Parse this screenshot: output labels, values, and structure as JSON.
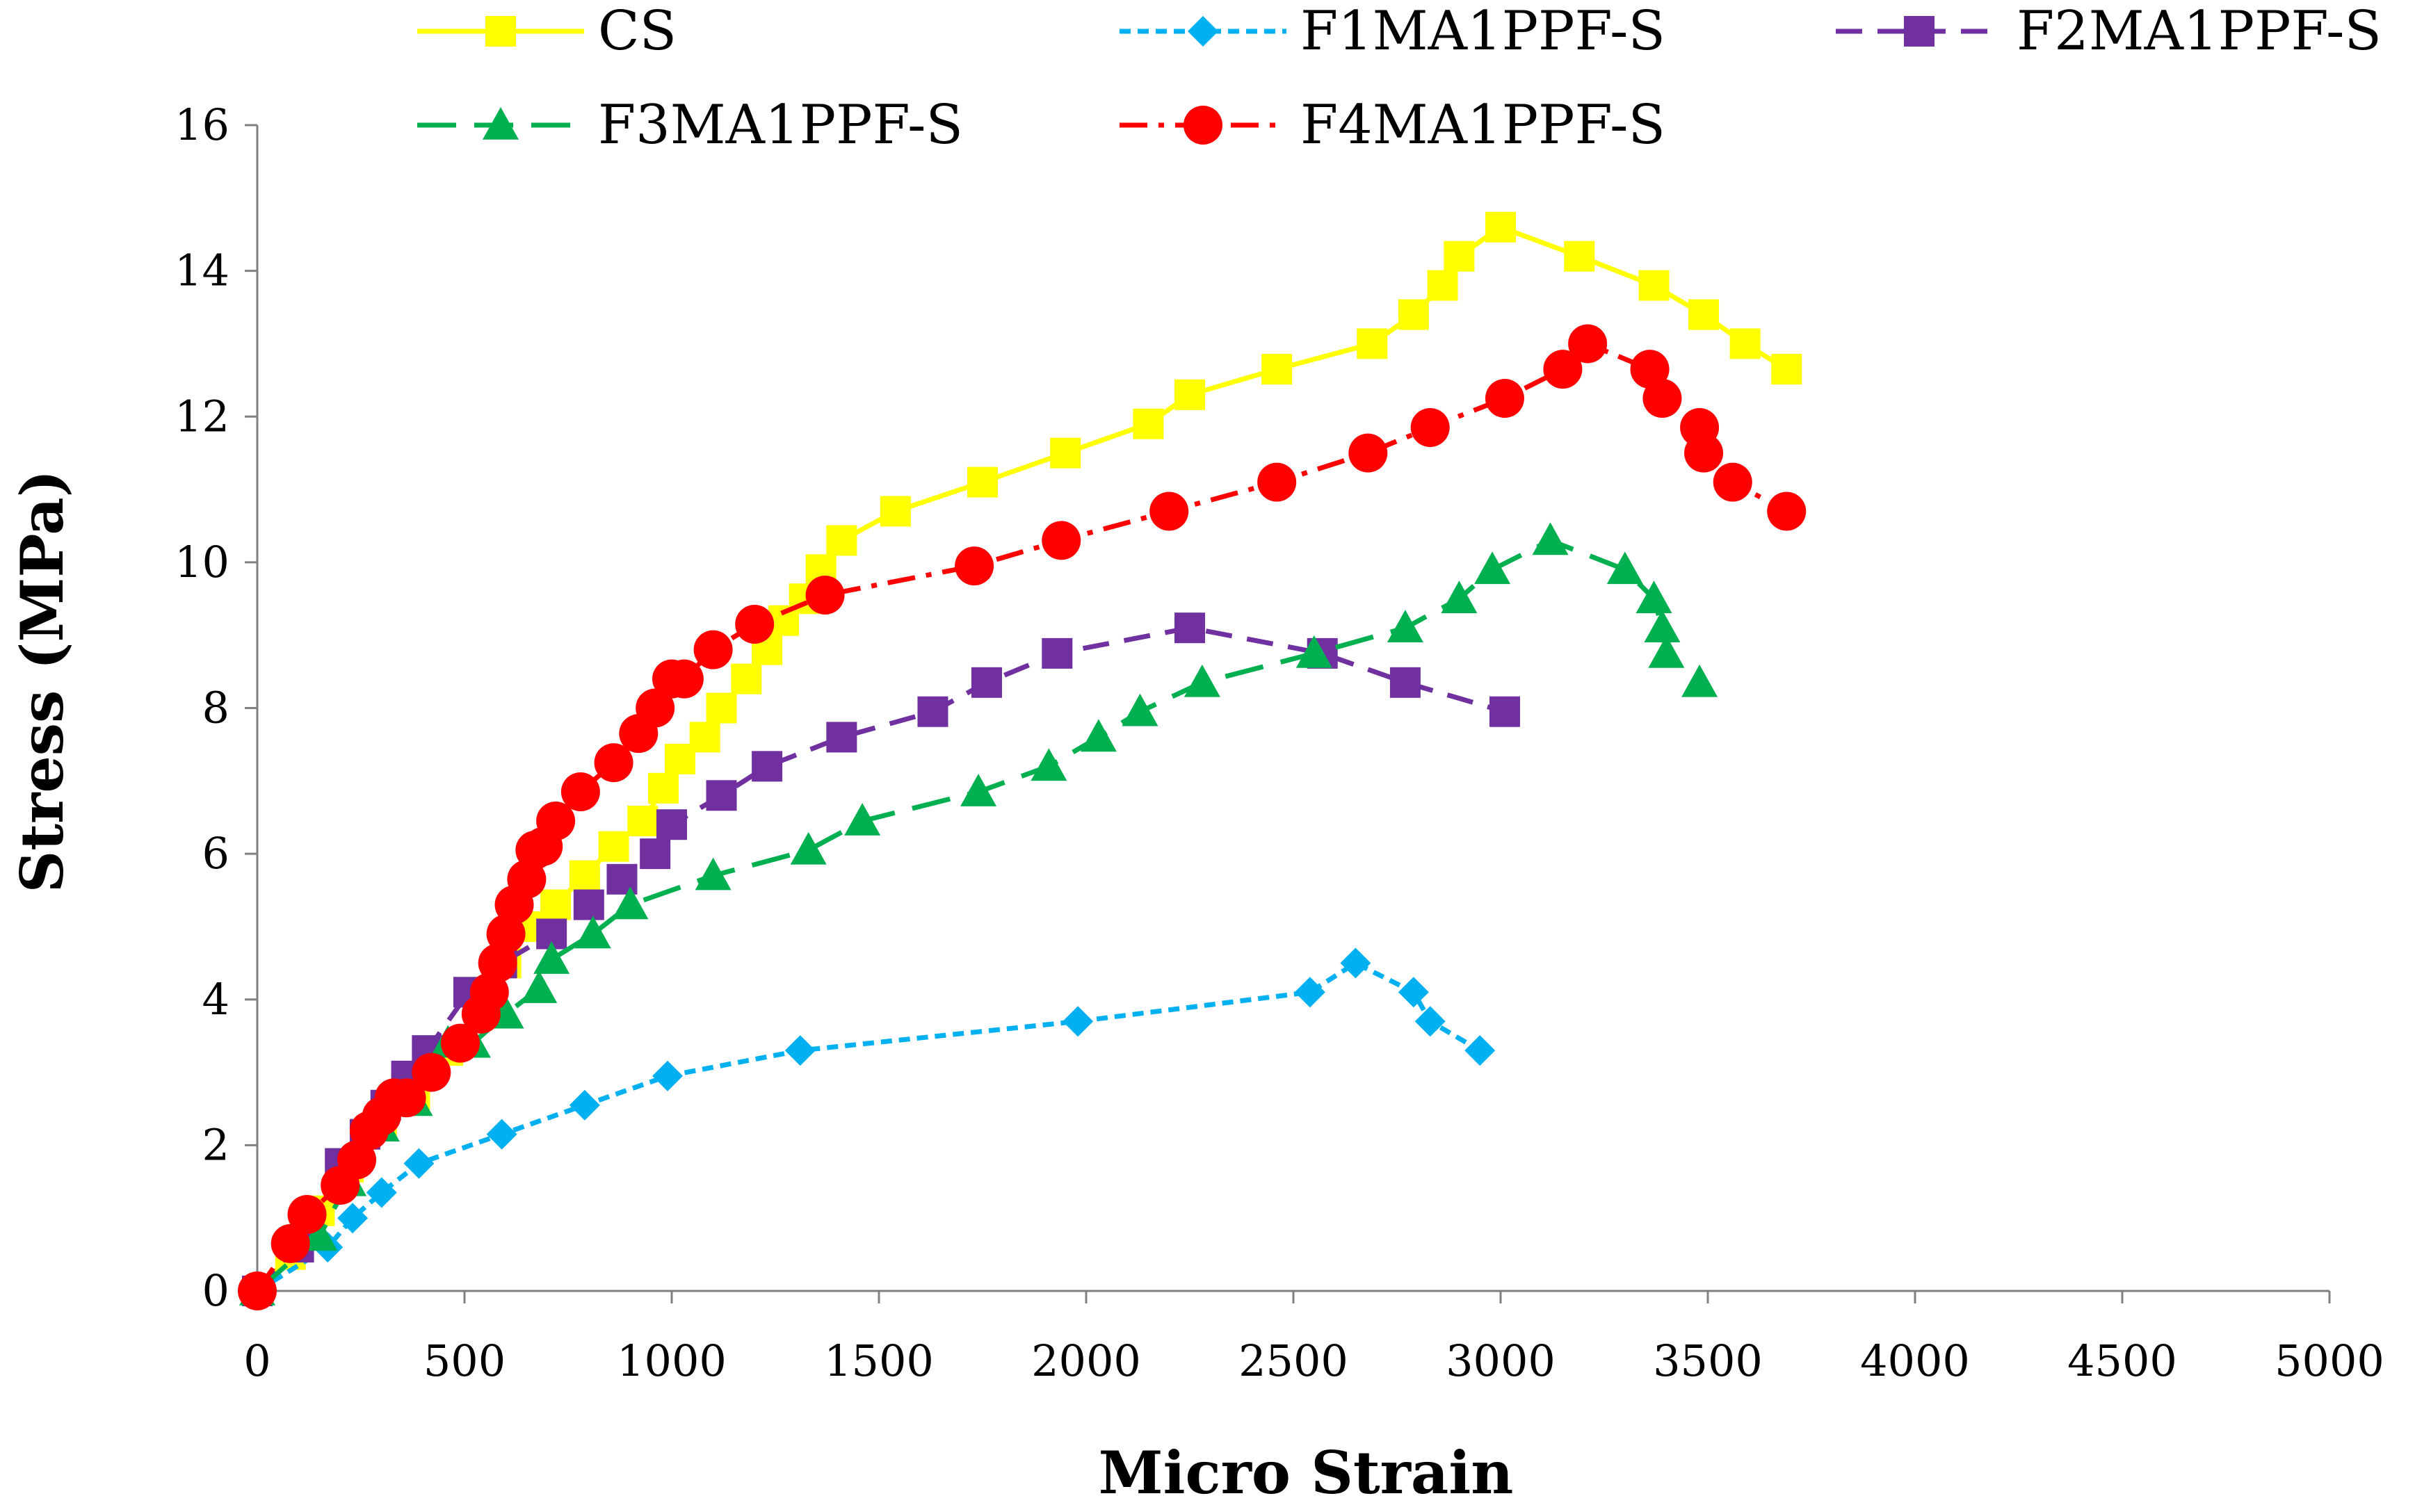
{
  "chart_data": {
    "type": "line",
    "xlabel": "Micro Strain",
    "ylabel": "Stress (MPa)",
    "xlim": [
      0,
      5000
    ],
    "ylim": [
      0,
      16
    ],
    "x_ticks": [
      "0",
      "500",
      "1000",
      "1500",
      "2000",
      "2500",
      "3000",
      "3500",
      "4000",
      "4500",
      "5000"
    ],
    "y_ticks": [
      "0",
      "2",
      "4",
      "6",
      "8",
      "10",
      "12",
      "14",
      "16"
    ],
    "grid": false,
    "legend_position": "top",
    "series": [
      {
        "name": "CS",
        "color": "#FFFF00",
        "marker": "square",
        "dash": "solid",
        "x": [
          0,
          80,
          150,
          220,
          300,
          380,
          460,
          540,
          600,
          660,
          720,
          790,
          860,
          930,
          980,
          1020,
          1080,
          1120,
          1180,
          1230,
          1270,
          1320,
          1360,
          1410,
          1540,
          1750,
          1950,
          2150,
          2250,
          2460,
          2690,
          2790,
          2860,
          2900,
          3000,
          3190,
          3370,
          3490,
          3590,
          3690
        ],
        "y": [
          0,
          0.5,
          1.1,
          1.7,
          2.3,
          2.7,
          3.3,
          3.9,
          4.5,
          5.0,
          5.3,
          5.7,
          6.1,
          6.45,
          6.9,
          7.3,
          7.6,
          8.0,
          8.4,
          8.8,
          9.2,
          9.5,
          9.9,
          10.3,
          10.7,
          11.1,
          11.5,
          11.9,
          12.3,
          12.65,
          13.0,
          13.4,
          13.8,
          14.2,
          14.6,
          14.2,
          13.8,
          13.4,
          13.0,
          12.65
        ]
      },
      {
        "name": "F1MA1PPF-S",
        "color": "#00B0F0",
        "marker": "diamond",
        "dash": "short-dash",
        "x": [
          0,
          170,
          230,
          300,
          390,
          590,
          790,
          990,
          1310,
          1980,
          2540,
          2650,
          2790,
          2830,
          2950
        ],
        "y": [
          0,
          0.6,
          1.0,
          1.35,
          1.75,
          2.15,
          2.55,
          2.95,
          3.3,
          3.7,
          4.1,
          4.5,
          4.1,
          3.7,
          3.3
        ]
      },
      {
        "name": "F2MA1PPF-S",
        "color": "#7030A0",
        "marker": "square",
        "dash": "dash",
        "x": [
          0,
          100,
          200,
          260,
          310,
          360,
          410,
          510,
          590,
          710,
          800,
          880,
          960,
          1000,
          1120,
          1230,
          1410,
          1630,
          1760,
          1930,
          2250,
          2570,
          2770,
          3010
        ],
        "y": [
          0,
          0.6,
          1.75,
          2.15,
          2.55,
          2.95,
          3.3,
          4.1,
          4.5,
          4.9,
          5.3,
          5.65,
          6.0,
          6.4,
          6.8,
          7.2,
          7.6,
          7.95,
          8.35,
          8.75,
          9.1,
          8.75,
          8.35,
          7.95
        ]
      },
      {
        "name": "F3MA1PPF-S",
        "color": "#00B050",
        "marker": "triangle",
        "dash": "long-dash",
        "x": [
          0,
          150,
          220,
          300,
          380,
          460,
          520,
          600,
          680,
          710,
          810,
          900,
          1100,
          1330,
          1460,
          1740,
          1910,
          2030,
          2130,
          2280,
          2550,
          2770,
          2900,
          2980,
          3120,
          3300,
          3370,
          3390,
          3400,
          3480
        ],
        "y": [
          0,
          0.75,
          1.5,
          2.25,
          2.6,
          3.4,
          3.4,
          3.8,
          4.15,
          4.55,
          4.9,
          5.3,
          5.7,
          6.05,
          6.45,
          6.85,
          7.2,
          7.6,
          7.95,
          8.35,
          8.75,
          9.1,
          9.5,
          9.9,
          10.3,
          9.9,
          9.5,
          9.1,
          8.75,
          8.35
        ]
      },
      {
        "name": "F4MA1PPF-S",
        "color": "#FF0000",
        "marker": "circle",
        "dash": "dash-dot",
        "x": [
          0,
          80,
          120,
          200,
          240,
          270,
          300,
          330,
          360,
          420,
          490,
          540,
          560,
          580,
          600,
          620,
          650,
          670,
          690,
          720,
          780,
          860,
          920,
          960,
          1000,
          1030,
          1100,
          1200,
          1370,
          1730,
          1940,
          2200,
          2460,
          2680,
          2830,
          3010,
          3150,
          3210,
          3360,
          3390,
          3480,
          3490,
          3560,
          3690
        ],
        "y": [
          0,
          0.65,
          1.05,
          1.45,
          1.8,
          2.2,
          2.4,
          2.65,
          2.65,
          3.0,
          3.4,
          3.8,
          4.1,
          4.5,
          4.9,
          5.3,
          5.65,
          6.05,
          6.1,
          6.45,
          6.85,
          7.25,
          7.65,
          8.0,
          8.4,
          8.4,
          8.8,
          9.15,
          9.55,
          9.95,
          10.3,
          10.7,
          11.1,
          11.5,
          11.85,
          12.25,
          12.65,
          13.0,
          12.65,
          12.25,
          11.85,
          11.5,
          11.1,
          10.7
        ]
      }
    ]
  }
}
